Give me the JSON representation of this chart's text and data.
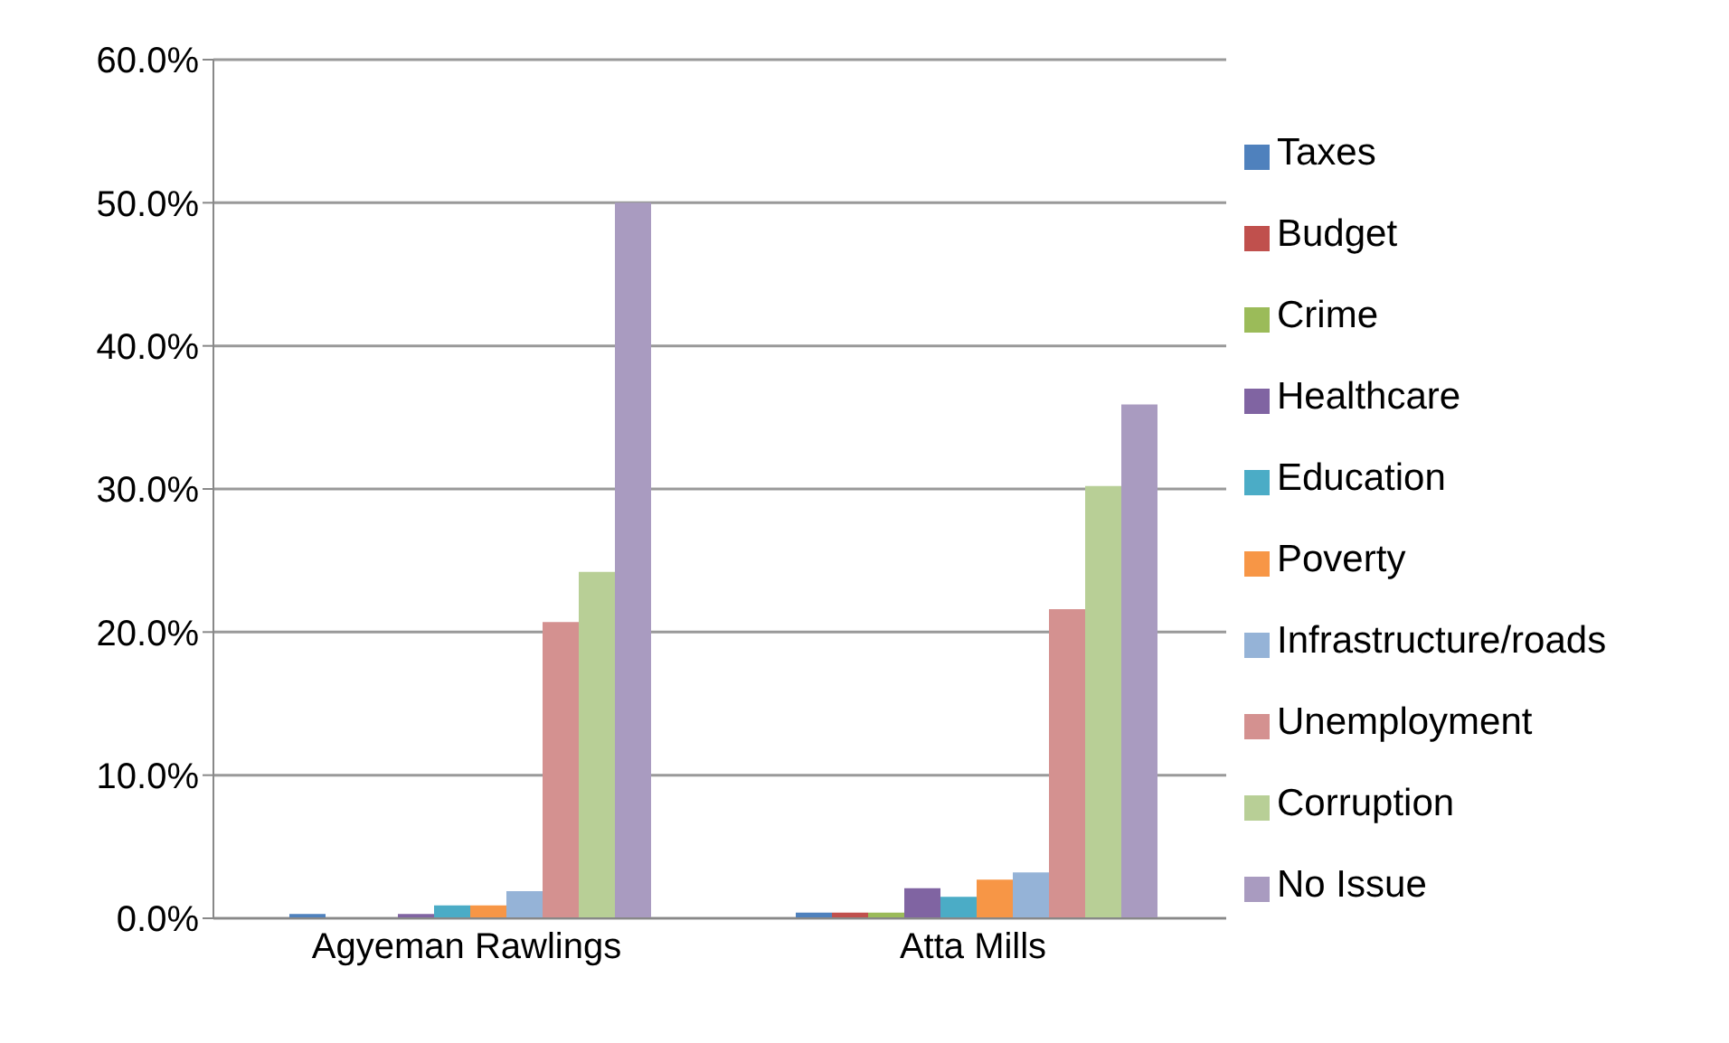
{
  "chart_data": {
    "type": "bar",
    "categories": [
      "Agyeman Rawlings",
      "Atta Mills"
    ],
    "series": [
      {
        "name": "Taxes",
        "color": "#4f81bd",
        "values": [
          0.3,
          0.4
        ]
      },
      {
        "name": "Budget",
        "color": "#c0504d",
        "values": [
          0,
          0.4
        ]
      },
      {
        "name": "Crime",
        "color": "#9bbb59",
        "values": [
          0,
          0.4
        ]
      },
      {
        "name": "Healthcare",
        "color": "#8064a2",
        "values": [
          0.3,
          2.1
        ]
      },
      {
        "name": "Education",
        "color": "#4bacc6",
        "values": [
          0.9,
          1.5
        ]
      },
      {
        "name": "Poverty",
        "color": "#f79646",
        "values": [
          0.9,
          2.7
        ]
      },
      {
        "name": "Infrastructure/roads",
        "color": "#95b3d7",
        "values": [
          1.9,
          3.2
        ]
      },
      {
        "name": "Unemployment",
        "color": "#d49190",
        "values": [
          20.7,
          21.6
        ]
      },
      {
        "name": "Corruption",
        "color": "#b8cf96",
        "values": [
          24.2,
          30.2
        ]
      },
      {
        "name": "No Issue",
        "color": "#a99bc0",
        "values": [
          50.0,
          35.9
        ]
      }
    ],
    "ylim": [
      0,
      60
    ],
    "yticks": [
      {
        "value": 0,
        "label": "0.0%"
      },
      {
        "value": 10,
        "label": "10.0%"
      },
      {
        "value": 20,
        "label": "20.0%"
      },
      {
        "value": 30,
        "label": "30.0%"
      },
      {
        "value": 40,
        "label": "40.0%"
      },
      {
        "value": 50,
        "label": "50.0%"
      },
      {
        "value": 60,
        "label": "60.0%"
      }
    ],
    "grid": "y",
    "legend": "right"
  }
}
